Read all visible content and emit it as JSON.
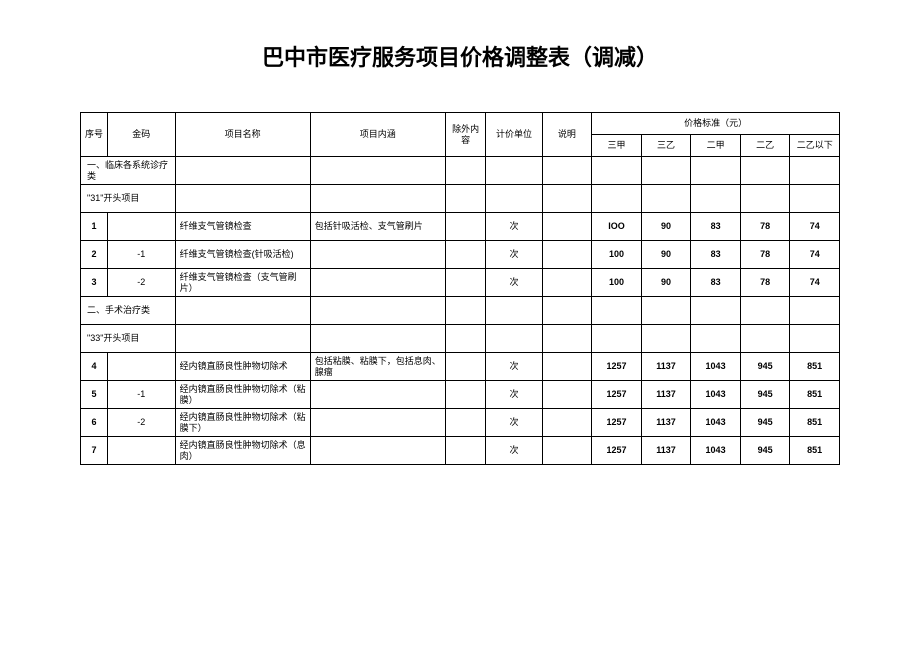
{
  "title": "巴中市医疗服务项目价格调整表（调减）",
  "headers": {
    "seq": "序号",
    "code": "金码",
    "name": "项目名称",
    "desc": "项目内涵",
    "excl": "除外内容",
    "unit": "计价单位",
    "note": "说明",
    "price_group": "价格标准（元）",
    "tiers": [
      "三甲",
      "三乙",
      "二甲",
      "二乙",
      "二乙以下"
    ]
  },
  "sections": {
    "s1": "一、临床各系统诊疗类",
    "s1a": "\"31\"开头项目",
    "s2": "二、手术治疗类",
    "s2a": "\"33\"开头项目"
  },
  "rows": {
    "r1": {
      "seq": "1",
      "code": "",
      "name": "纤维支气管镜检查",
      "desc": "包括针吸活检、支气管刷片",
      "unit": "次",
      "p": [
        "IOO",
        "90",
        "83",
        "78",
        "74"
      ]
    },
    "r2": {
      "seq": "2",
      "code": "-1",
      "name": "纤维支气管镜检查(针吸活检)",
      "desc": "",
      "unit": "次",
      "p": [
        "100",
        "90",
        "83",
        "78",
        "74"
      ]
    },
    "r3": {
      "seq": "3",
      "code": "-2",
      "name": "纤维支气管镜检查（支气管刷片）",
      "desc": "",
      "unit": "次",
      "p": [
        "100",
        "90",
        "83",
        "78",
        "74"
      ]
    },
    "r4": {
      "seq": "4",
      "code": "",
      "name": "经内镜直肠良性肿物切除术",
      "desc": "包括粘膜、粘膜下，包括息肉、腺瘤",
      "unit": "次",
      "p": [
        "1257",
        "1137",
        "1043",
        "945",
        "851"
      ]
    },
    "r5": {
      "seq": "5",
      "code": "-1",
      "name": "经内镜直肠良性肿物切除术（粘膜）",
      "desc": "",
      "unit": "次",
      "p": [
        "1257",
        "1137",
        "1043",
        "945",
        "851"
      ]
    },
    "r6": {
      "seq": "6",
      "code": "-2",
      "name": "经内镜直肠良性肿物切除术（粘膜下）",
      "desc": "",
      "unit": "次",
      "p": [
        "1257",
        "1137",
        "1043",
        "945",
        "851"
      ]
    },
    "r7": {
      "seq": "7",
      "code": "",
      "name": "经内镜直肠良性肿物切除术（息肉）",
      "desc": "",
      "unit": "次",
      "p": [
        "1257",
        "1137",
        "1043",
        "945",
        "851"
      ]
    }
  }
}
